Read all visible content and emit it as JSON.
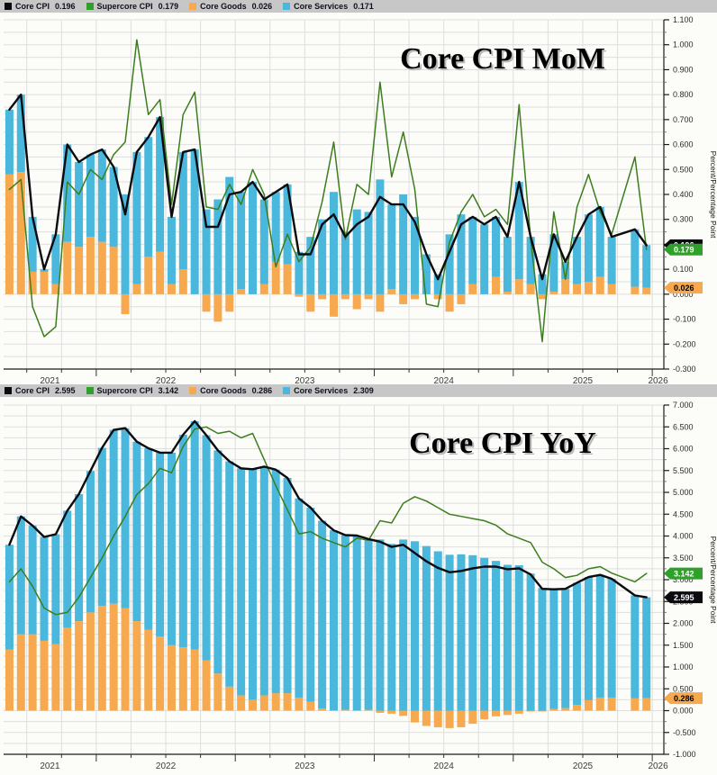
{
  "ylabel_color": "#111111",
  "colors": {
    "core_cpi_line": "#0a0a0f",
    "supercore_line": "#3c7e1e",
    "goods_bar": "#f6a94f",
    "services_bar": "#4ab7dc",
    "legend_bg": "#c7c7c7",
    "grid": "#dedede",
    "axis": "#1a1a1a",
    "plot_bg": "#fcfcf9"
  },
  "chart_data": [
    {
      "type": "bar",
      "title": "Core CPI MoM",
      "ylabel": "Percent/Percentage Point",
      "ylim": [
        -0.3,
        1.1
      ],
      "ytick_major": 0.1,
      "ytick_minor": 0.05,
      "x_year_labels": [
        "2021",
        "2022",
        "2023",
        "2024",
        "2025",
        "2026"
      ],
      "x_months": [
        "2021-05",
        "2021-06",
        "2021-07",
        "2021-08",
        "2021-09",
        "2021-10",
        "2021-11",
        "2021-12",
        "2022-01",
        "2022-02",
        "2022-03",
        "2022-04",
        "2022-05",
        "2022-06",
        "2022-07",
        "2022-08",
        "2022-09",
        "2022-10",
        "2022-11",
        "2022-12",
        "2023-01",
        "2023-02",
        "2023-03",
        "2023-04",
        "2023-05",
        "2023-06",
        "2023-07",
        "2023-08",
        "2023-09",
        "2023-10",
        "2023-11",
        "2023-12",
        "2024-01",
        "2024-02",
        "2024-03",
        "2024-04",
        "2024-05",
        "2024-06",
        "2024-07",
        "2024-08",
        "2024-09",
        "2024-10",
        "2024-11",
        "2024-12",
        "2025-01",
        "2025-02",
        "2025-03",
        "2025-04",
        "2025-05",
        "2025-06",
        "2025-07",
        "2025-08",
        "2025-09",
        "2025-10",
        "2025-11",
        "2025-12"
      ],
      "legend": [
        {
          "label": "Core CPI",
          "value": "0.196",
          "color": "#0a0a0f"
        },
        {
          "label": "Supercore CPI",
          "value": "0.179",
          "color": "#2fa12a"
        },
        {
          "label": "Core Goods",
          "value": "0.026",
          "color": "#f6a94f"
        },
        {
          "label": "Core Services",
          "value": "0.171",
          "color": "#4ab7dc"
        }
      ],
      "badges": [
        {
          "text": "0.196",
          "bg": "#0a0a0f",
          "fg": "#ffffff",
          "at": 0.196
        },
        {
          "text": "0.179",
          "bg": "#2fa12a",
          "fg": "#ffffff",
          "at": 0.179
        },
        {
          "text": "0.026",
          "bg": "#f6a94f",
          "fg": "#000000",
          "at": 0.026
        }
      ],
      "bar_series": [
        {
          "name": "Core Goods",
          "color": "#f6a94f",
          "values": [
            0.48,
            0.49,
            0.09,
            0.09,
            0.04,
            0.21,
            0.19,
            0.23,
            0.21,
            0.19,
            -0.08,
            0.04,
            0.15,
            0.17,
            0.04,
            0.1,
            0.0,
            -0.07,
            -0.11,
            -0.07,
            0.02,
            0.0,
            0.04,
            0.13,
            0.12,
            -0.01,
            -0.07,
            -0.02,
            -0.09,
            -0.02,
            -0.06,
            -0.02,
            -0.07,
            0.02,
            -0.04,
            -0.02,
            0.0,
            -0.02,
            -0.07,
            -0.04,
            0.04,
            0.0,
            0.07,
            0.01,
            0.06,
            0.04,
            -0.02,
            0.01,
            0.06,
            0.04,
            0.05,
            0.07,
            0.04,
            null,
            0.03,
            0.026
          ]
        },
        {
          "name": "Core Services",
          "color": "#4ab7dc",
          "values": [
            0.26,
            0.31,
            0.22,
            0.01,
            0.2,
            0.39,
            0.34,
            0.33,
            0.37,
            0.32,
            0.4,
            0.53,
            0.48,
            0.54,
            0.27,
            0.47,
            0.58,
            0.34,
            0.38,
            0.47,
            0.39,
            0.45,
            0.34,
            0.28,
            0.32,
            0.17,
            0.23,
            0.3,
            0.41,
            0.25,
            0.34,
            0.33,
            0.46,
            0.34,
            0.4,
            0.31,
            0.16,
            0.08,
            0.24,
            0.32,
            0.27,
            0.28,
            0.24,
            0.22,
            0.39,
            0.19,
            0.08,
            0.23,
            0.07,
            0.19,
            0.27,
            0.28,
            0.19,
            null,
            0.23,
            0.171
          ]
        }
      ],
      "line_series": [
        {
          "name": "Supercore CPI",
          "color": "#3c7e1e",
          "width": 1.5,
          "values": [
            0.42,
            0.46,
            -0.05,
            -0.17,
            -0.13,
            0.45,
            0.4,
            0.5,
            0.46,
            0.56,
            0.61,
            1.02,
            0.72,
            0.78,
            0.36,
            0.72,
            0.81,
            0.35,
            0.34,
            0.44,
            0.36,
            0.5,
            0.4,
            0.11,
            0.24,
            0.13,
            0.19,
            0.37,
            0.61,
            0.22,
            0.44,
            0.4,
            0.85,
            0.47,
            0.65,
            0.42,
            -0.04,
            -0.05,
            0.21,
            0.33,
            0.4,
            0.31,
            0.34,
            0.28,
            0.76,
            0.22,
            -0.19,
            0.33,
            0.06,
            0.35,
            0.48,
            0.33,
            0.24,
            null,
            0.55,
            0.179
          ]
        },
        {
          "name": "Core CPI",
          "color": "#0a0a0f",
          "width": 2.4,
          "values": [
            0.74,
            0.8,
            0.31,
            0.1,
            0.24,
            0.6,
            0.53,
            0.56,
            0.58,
            0.51,
            0.32,
            0.57,
            0.63,
            0.71,
            0.31,
            0.57,
            0.58,
            0.27,
            0.27,
            0.4,
            0.41,
            0.45,
            0.38,
            0.41,
            0.44,
            0.16,
            0.16,
            0.28,
            0.32,
            0.23,
            0.28,
            0.31,
            0.39,
            0.36,
            0.36,
            0.29,
            0.16,
            0.06,
            0.17,
            0.28,
            0.31,
            0.28,
            0.31,
            0.23,
            0.45,
            0.23,
            0.06,
            0.24,
            0.13,
            0.23,
            0.32,
            0.35,
            0.23,
            null,
            0.26,
            0.196
          ]
        }
      ]
    },
    {
      "type": "bar",
      "title": "Core CPI YoY",
      "ylabel": "Percent/Percentage Point",
      "ylim": [
        -1.0,
        7.0
      ],
      "ytick_major": 0.5,
      "ytick_minor": 0.25,
      "x_year_labels": [
        "2021",
        "2022",
        "2023",
        "2024",
        "2025",
        "2026"
      ],
      "x_months": [
        "2021-05",
        "2021-06",
        "2021-07",
        "2021-08",
        "2021-09",
        "2021-10",
        "2021-11",
        "2021-12",
        "2022-01",
        "2022-02",
        "2022-03",
        "2022-04",
        "2022-05",
        "2022-06",
        "2022-07",
        "2022-08",
        "2022-09",
        "2022-10",
        "2022-11",
        "2022-12",
        "2023-01",
        "2023-02",
        "2023-03",
        "2023-04",
        "2023-05",
        "2023-06",
        "2023-07",
        "2023-08",
        "2023-09",
        "2023-10",
        "2023-11",
        "2023-12",
        "2024-01",
        "2024-02",
        "2024-03",
        "2024-04",
        "2024-05",
        "2024-06",
        "2024-07",
        "2024-08",
        "2024-09",
        "2024-10",
        "2024-11",
        "2024-12",
        "2025-01",
        "2025-02",
        "2025-03",
        "2025-04",
        "2025-05",
        "2025-06",
        "2025-07",
        "2025-08",
        "2025-09",
        "2025-10",
        "2025-11",
        "2025-12"
      ],
      "legend": [
        {
          "label": "Core CPI",
          "value": "2.595",
          "color": "#0a0a0f"
        },
        {
          "label": "Supercore CPI",
          "value": "3.142",
          "color": "#2fa12a"
        },
        {
          "label": "Core Goods",
          "value": "0.286",
          "color": "#f6a94f"
        },
        {
          "label": "Core Services",
          "value": "2.309",
          "color": "#4ab7dc"
        }
      ],
      "badges": [
        {
          "text": "3.142",
          "bg": "#2fa12a",
          "fg": "#ffffff",
          "at": 3.142
        },
        {
          "text": "2.595",
          "bg": "#0a0a0f",
          "fg": "#ffffff",
          "at": 2.595
        },
        {
          "text": "0.286",
          "bg": "#f6a94f",
          "fg": "#000000",
          "at": 0.286
        }
      ],
      "bar_series": [
        {
          "name": "Core Goods",
          "color": "#f6a94f",
          "values": [
            1.4,
            1.75,
            1.75,
            1.6,
            1.52,
            1.9,
            2.05,
            2.25,
            2.4,
            2.45,
            2.35,
            2.05,
            1.85,
            1.7,
            1.5,
            1.45,
            1.4,
            1.15,
            0.85,
            0.55,
            0.35,
            0.25,
            0.35,
            0.4,
            0.4,
            0.3,
            0.2,
            0.05,
            0.0,
            0.02,
            0.0,
            0.02,
            -0.05,
            -0.07,
            -0.12,
            -0.27,
            -0.35,
            -0.38,
            -0.4,
            -0.38,
            -0.3,
            -0.2,
            -0.13,
            -0.1,
            -0.07,
            -0.02,
            -0.02,
            0.04,
            0.06,
            0.13,
            0.24,
            0.3,
            0.3,
            null,
            0.28,
            0.286
          ]
        },
        {
          "name": "Core Services",
          "color": "#4ab7dc",
          "values": [
            2.4,
            2.7,
            2.49,
            2.38,
            2.52,
            2.68,
            2.91,
            3.24,
            3.62,
            3.98,
            4.12,
            4.11,
            4.16,
            4.21,
            4.41,
            4.87,
            5.23,
            5.16,
            5.11,
            5.16,
            5.2,
            5.28,
            5.24,
            5.12,
            4.93,
            4.56,
            4.45,
            4.3,
            4.13,
            4.0,
            4.01,
            3.91,
            3.92,
            3.82,
            3.92,
            3.88,
            3.77,
            3.65,
            3.57,
            3.58,
            3.56,
            3.5,
            3.43,
            3.34,
            3.33,
            3.14,
            2.81,
            2.74,
            2.73,
            2.8,
            2.82,
            2.81,
            2.72,
            null,
            2.36,
            2.309
          ]
        }
      ],
      "line_series": [
        {
          "name": "Supercore CPI",
          "color": "#3c7e1e",
          "width": 1.5,
          "values": [
            2.95,
            3.25,
            2.85,
            2.35,
            2.2,
            2.25,
            2.6,
            3.05,
            3.5,
            4.0,
            4.45,
            4.95,
            5.2,
            5.55,
            5.45,
            6.05,
            6.45,
            6.5,
            6.35,
            6.4,
            6.25,
            6.35,
            5.75,
            5.15,
            4.6,
            4.05,
            4.1,
            3.95,
            3.85,
            3.75,
            3.95,
            3.9,
            4.35,
            4.3,
            4.75,
            4.9,
            4.8,
            4.65,
            4.5,
            4.45,
            4.4,
            4.35,
            4.25,
            4.05,
            3.95,
            3.85,
            3.4,
            3.25,
            3.05,
            3.1,
            3.25,
            3.3,
            3.15,
            null,
            2.95,
            3.142
          ]
        },
        {
          "name": "Core CPI",
          "color": "#0a0a0f",
          "width": 2.4,
          "values": [
            3.8,
            4.45,
            4.24,
            3.98,
            4.04,
            4.58,
            4.96,
            5.49,
            6.02,
            6.43,
            6.47,
            6.16,
            6.01,
            5.91,
            5.91,
            6.32,
            6.63,
            6.31,
            5.96,
            5.71,
            5.55,
            5.53,
            5.59,
            5.52,
            5.33,
            4.86,
            4.65,
            4.35,
            4.13,
            4.02,
            4.01,
            3.93,
            3.87,
            3.75,
            3.8,
            3.61,
            3.42,
            3.27,
            3.17,
            3.2,
            3.26,
            3.3,
            3.3,
            3.24,
            3.26,
            3.12,
            2.79,
            2.78,
            2.79,
            2.93,
            3.06,
            3.11,
            3.02,
            null,
            2.64,
            2.595
          ]
        }
      ]
    }
  ]
}
